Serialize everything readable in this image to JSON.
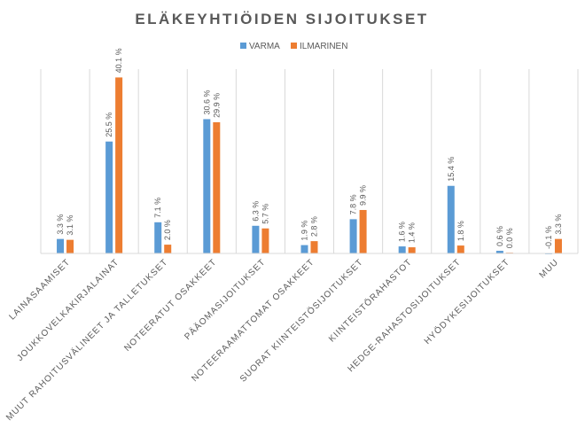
{
  "chart_data": {
    "type": "bar",
    "title": "ELÄKEYHTIÖIDEN SIJOITUKSET",
    "xlabel": "",
    "ylabel": "",
    "ylim": [
      0,
      42
    ],
    "grid": "vertical category separators",
    "legend_position": "top",
    "categories": [
      "LAINASAAMISET",
      "JOUKKOVELKAKIRJALAINAT",
      "MUUT RAHOITUSVÄLINEET JA TALLETUKSET",
      "NOTEERATUT OSAKKEET",
      "PÄÄOMASIJOITUKSET",
      "NOTEERAAMATTOMAT OSAKKEET",
      "SUORAT KIINTEISTÖSIJOITUKSET",
      "KIINTEISTÖRAHASTOT",
      "HEDGE-RAHASTOSIJOITUKSET",
      "HYÖDYKESIJOITUKSET",
      "MUU"
    ],
    "series": [
      {
        "name": "VARMA",
        "color": "#5B9BD5",
        "values": [
          3.3,
          25.5,
          7.1,
          30.6,
          6.3,
          1.9,
          7.8,
          1.6,
          15.4,
          0.6,
          -0.1
        ],
        "labels": [
          "3.3 %",
          "25.5 %",
          "7.1 %",
          "30.6 %",
          "6.3 %",
          "1.9 %",
          "7.8 %",
          "1.6 %",
          "15.4 %",
          "0.6 %",
          "-0.1 %"
        ]
      },
      {
        "name": "ILMARINEN",
        "color": "#ED7D31",
        "values": [
          3.1,
          40.1,
          2.0,
          29.9,
          5.7,
          2.8,
          9.9,
          1.4,
          1.8,
          0.0,
          3.3
        ],
        "labels": [
          "3.1 %",
          "40.1 %",
          "2.0 %",
          "29.9 %",
          "5.7 %",
          "2.8 %",
          "9.9 %",
          "1.4 %",
          "1.8 %",
          "0.0 %",
          "3.3 %"
        ]
      }
    ]
  }
}
